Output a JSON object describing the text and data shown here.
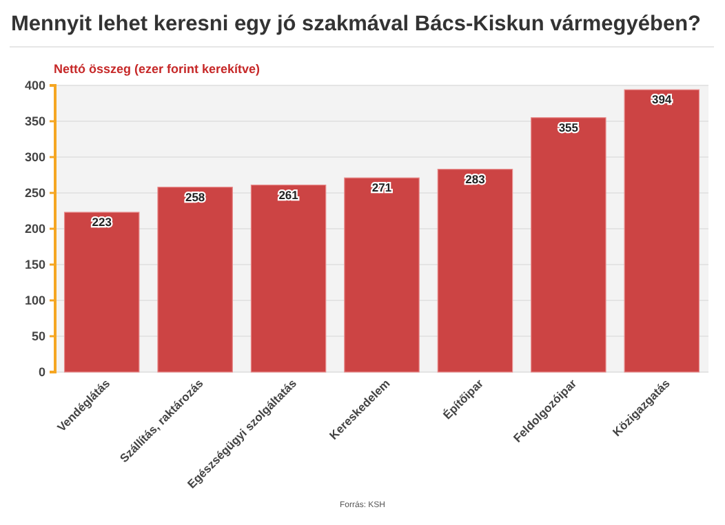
{
  "chart_data": {
    "type": "bar",
    "title": "Mennyit lehet keresni egy jó szakmával Bács-Kiskun vármegyében?",
    "ylabel": "Nettó összeg (ezer forint kerekítve)",
    "categories": [
      "Vendéglátás",
      "Szállítás, raktározás",
      "Egészségügyi szolgáltatás",
      "Kereskedelem",
      "Építőipar",
      "Feldolgozóipar",
      "Közigazgatás"
    ],
    "values": [
      223,
      258,
      261,
      271,
      283,
      355,
      394
    ],
    "color": "#cc4444",
    "ylim": [
      0,
      400
    ],
    "yticks": [
      0,
      50,
      100,
      150,
      200,
      250,
      300,
      350,
      400
    ],
    "grid": "y",
    "data_labels": true,
    "annotations": [
      "Forrás: KSH"
    ]
  }
}
